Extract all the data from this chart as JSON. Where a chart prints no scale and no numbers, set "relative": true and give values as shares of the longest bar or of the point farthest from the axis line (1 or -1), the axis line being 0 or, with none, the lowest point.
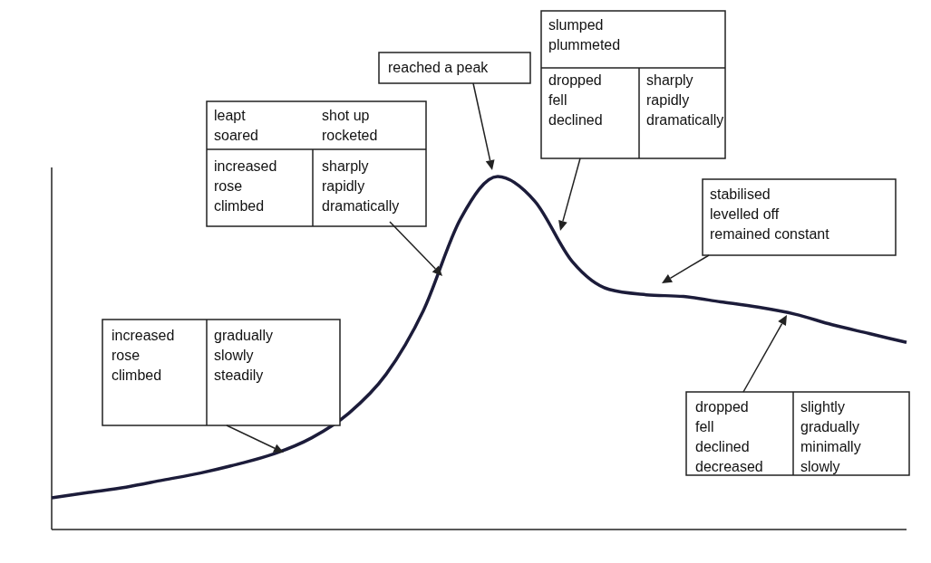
{
  "chart_data": {
    "type": "line",
    "relative": true,
    "color": "#1c1c3a",
    "line_style": "solid",
    "categories": [
      null,
      null,
      null,
      null,
      null,
      null,
      null,
      null,
      null,
      null,
      null,
      null,
      null,
      null,
      null,
      null,
      null,
      null,
      null,
      null,
      null,
      null,
      null,
      null
    ],
    "values": [
      0.09,
      0.105,
      0.12,
      0.14,
      0.16,
      0.185,
      0.215,
      0.26,
      0.33,
      0.44,
      0.62,
      0.88,
      1.0,
      0.93,
      0.76,
      0.68,
      0.665,
      0.66,
      0.645,
      0.63,
      0.61,
      0.58,
      0.555,
      0.53
    ],
    "annotations": [
      "leapt\nsoared",
      "shot up\nrocketed",
      "increased\nrose\nclimbed",
      "sharply\nrapidly\ndramatically",
      "reached a peak",
      "slumped\nplummeted",
      "dropped\nfell\ndeclined",
      "sharply\nrapidly\ndramatically",
      "stabilised\nlevelled off\nremained constant",
      "increased\nrose\nclimbed",
      "gradually\nslowly\nsteadily",
      "dropped\nfell\ndeclined\ndecreased",
      "slightly\ngradually\nminimally\nslowly"
    ]
  }
}
